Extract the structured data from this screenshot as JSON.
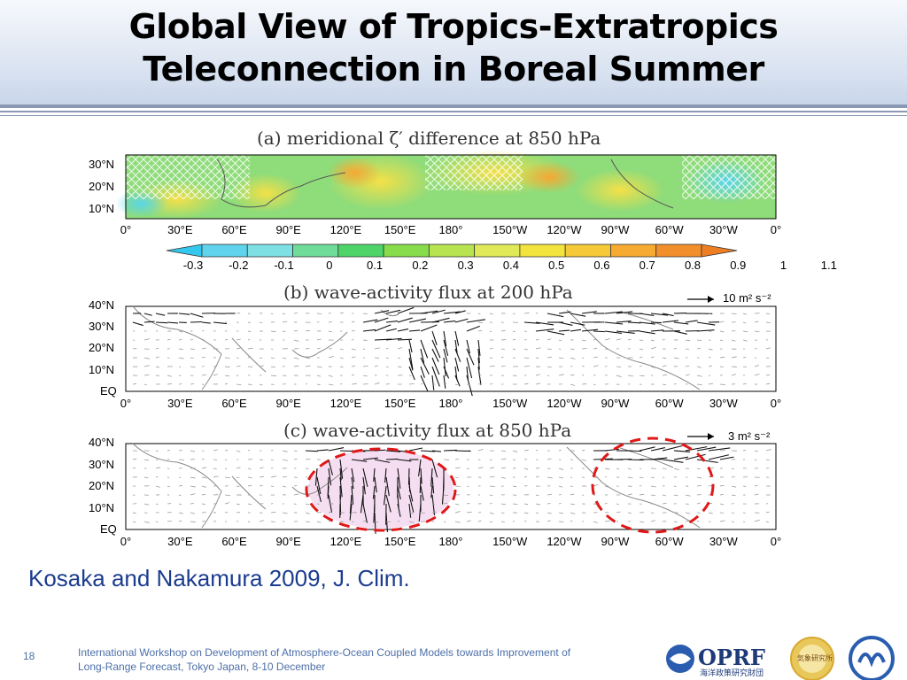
{
  "slide": {
    "title_line1": "Global View of Tropics-Extratropics",
    "title_line2": "Teleconnection in Boreal Summer",
    "citation": "Kosaka and Nakamura 2009, J. Clim.",
    "slide_number": "18",
    "footer_line1": "International Workshop on Development of Atmosphere-Ocean Coupled Models towards Improvement of",
    "footer_line2": "Long-Range Forecast, Tokyo Japan, 8-10 December",
    "logo_oprf_text": "OPRF",
    "logo_oprf_caption": "海洋政策研究財団",
    "logo_seal_text": "気象研究所"
  },
  "figure": {
    "lon_labels": [
      "0°",
      "30°E",
      "60°E",
      "90°E",
      "120°E",
      "150°E",
      "180°",
      "150°W",
      "120°W",
      "90°W",
      "60°W",
      "30°W",
      "0°"
    ],
    "panel_a": {
      "title": "(a) meridional ζ′ difference at 850 hPa",
      "lat_labels": [
        "30°N",
        "20°N",
        "10°N"
      ]
    },
    "colorbar": {
      "labels": [
        "-0.3",
        "-0.2",
        "-0.1",
        "0",
        "0.1",
        "0.2",
        "0.3",
        "0.4",
        "0.5",
        "0.6",
        "0.7",
        "0.8",
        "0.9",
        "1",
        "1.1"
      ],
      "colors": [
        "#35c8ee",
        "#5fd4ec",
        "#7fe0e4",
        "#70dc9a",
        "#4ed468",
        "#86dc4a",
        "#b8e450",
        "#e0ea58",
        "#f2e43c",
        "#f6c938",
        "#f6ab30",
        "#f28f2a",
        "#ee7e24"
      ]
    },
    "panel_b": {
      "title": "(b) wave-activity flux at 200 hPa",
      "ref_vector": "10 m² s⁻²",
      "lat_labels": [
        "40°N",
        "30°N",
        "20°N",
        "10°N",
        "EQ"
      ]
    },
    "panel_c": {
      "title": "(c) wave-activity flux at 850 hPa",
      "ref_vector": "3 m² s⁻²",
      "lat_labels": [
        "40°N",
        "30°N",
        "20°N",
        "10°N",
        "EQ"
      ]
    },
    "colors": {
      "highlight_ellipse": "#e01818",
      "citation": "#1b3d8f",
      "footer": "#4d6fa8"
    }
  }
}
